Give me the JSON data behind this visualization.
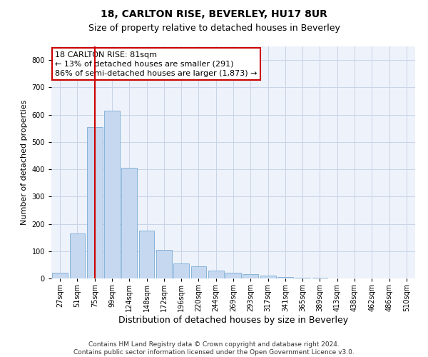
{
  "title": "18, CARLTON RISE, BEVERLEY, HU17 8UR",
  "subtitle": "Size of property relative to detached houses in Beverley",
  "xlabel": "Distribution of detached houses by size in Beverley",
  "ylabel": "Number of detached properties",
  "bin_labels": [
    "27sqm",
    "51sqm",
    "75sqm",
    "99sqm",
    "124sqm",
    "148sqm",
    "172sqm",
    "196sqm",
    "220sqm",
    "244sqm",
    "269sqm",
    "293sqm",
    "317sqm",
    "341sqm",
    "365sqm",
    "389sqm",
    "413sqm",
    "438sqm",
    "462sqm",
    "486sqm",
    "510sqm"
  ],
  "bar_heights": [
    20,
    165,
    555,
    615,
    405,
    175,
    105,
    55,
    45,
    30,
    20,
    15,
    10,
    5,
    3,
    2,
    1,
    1,
    1,
    0,
    1
  ],
  "bar_color": "#c5d8f0",
  "bar_edge_color": "#7aadd4",
  "grid_color": "#c8d4e8",
  "background_color": "#eef2fa",
  "vline_x_index": 2,
  "vline_color": "#cc0000",
  "ylim": [
    0,
    850
  ],
  "yticks": [
    0,
    100,
    200,
    300,
    400,
    500,
    600,
    700,
    800
  ],
  "annotation_text": "18 CARLTON RISE: 81sqm\n← 13% of detached houses are smaller (291)\n86% of semi-detached houses are larger (1,873) →",
  "annotation_box_color": "#ffffff",
  "annotation_border_color": "#cc0000",
  "footer_text": "Contains HM Land Registry data © Crown copyright and database right 2024.\nContains public sector information licensed under the Open Government Licence v3.0.",
  "title_fontsize": 10,
  "subtitle_fontsize": 9,
  "ylabel_fontsize": 8,
  "xlabel_fontsize": 9,
  "annotation_fontsize": 8,
  "tick_fontsize": 7,
  "footer_fontsize": 6.5
}
